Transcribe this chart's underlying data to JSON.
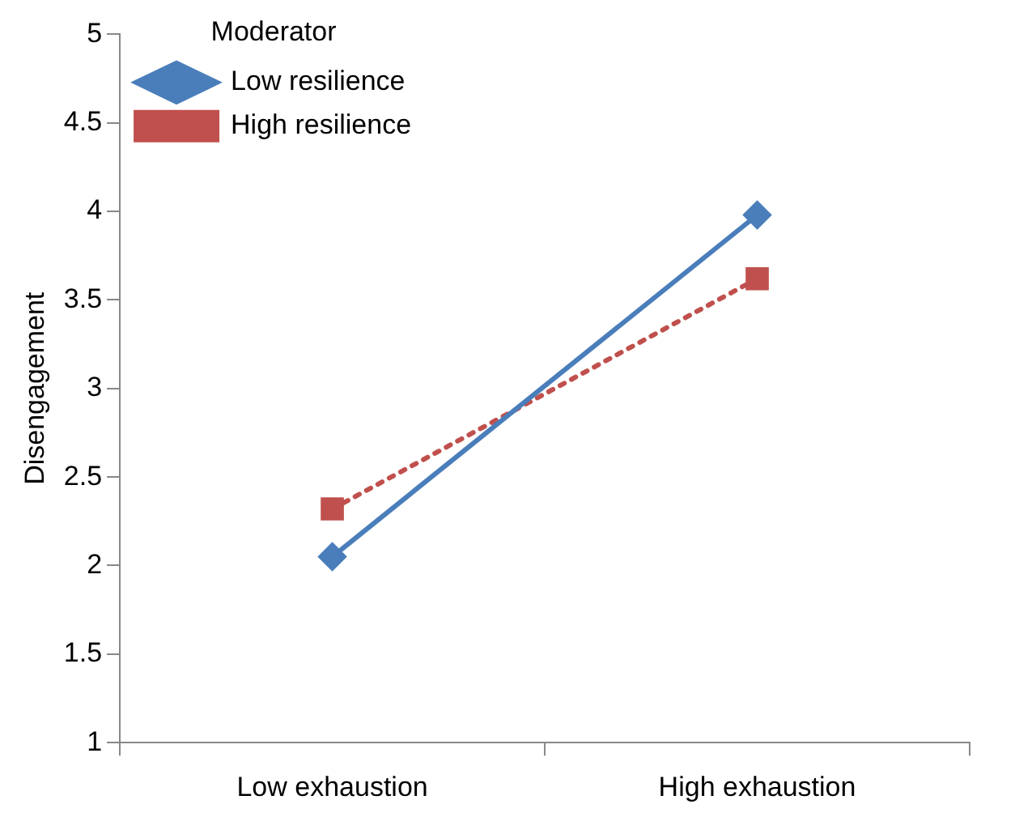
{
  "chart_data": {
    "type": "line",
    "ylabel": "Disengagement",
    "legend_title": "Moderator",
    "legend": "top left",
    "grid": false,
    "categories": [
      "Low exhaustion",
      "High exhaustion"
    ],
    "ylim": [
      1,
      5
    ],
    "yticks": [
      1,
      1.5,
      2,
      2.5,
      3,
      3.5,
      4,
      4.5,
      5
    ],
    "series": [
      {
        "name": "Low resilience",
        "color": "#4a7ebb",
        "values": [
          2.05,
          3.98
        ],
        "marker": "diamond",
        "line_style": "solid"
      },
      {
        "name": "High resilience",
        "color": "#c0504d",
        "values": [
          2.32,
          3.62
        ],
        "marker": "square",
        "line_style": "dotted"
      }
    ]
  }
}
